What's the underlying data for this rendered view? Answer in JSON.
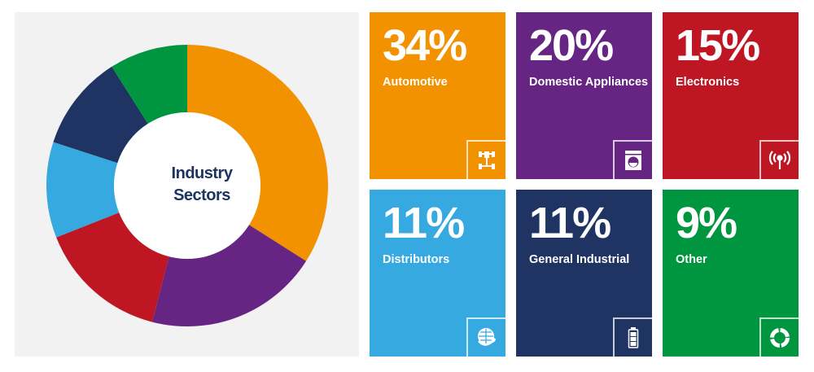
{
  "chart_data": {
    "type": "pie",
    "title": "Industry Sectors",
    "title_lines": [
      "Industry",
      "Sectors"
    ],
    "donut": true,
    "start": "top",
    "direction": "clockwise",
    "categories": [
      "Automotive",
      "Domestic Appliances",
      "Electronics",
      "Distributors",
      "General Industrial",
      "Other"
    ],
    "values": [
      34,
      20,
      15,
      11,
      11,
      9
    ],
    "colors": [
      "#f39200",
      "#662483",
      "#be1622",
      "#36a9e1",
      "#1f3463",
      "#009640"
    ]
  },
  "tiles": [
    {
      "pct": "34%",
      "label": "Automotive",
      "icon": "chassis-icon",
      "color": "#f39200"
    },
    {
      "pct": "20%",
      "label": "Domestic Appliances",
      "icon": "washing-machine-icon",
      "color": "#662483"
    },
    {
      "pct": "15%",
      "label": "Electronics",
      "icon": "antenna-signal-icon",
      "color": "#be1622"
    },
    {
      "pct": "11%",
      "label": "Distributors",
      "icon": "globe-arrow-icon",
      "color": "#36a9e1"
    },
    {
      "pct": "11%",
      "label": "General Industrial",
      "icon": "battery-icon",
      "color": "#1f3463"
    },
    {
      "pct": "9%",
      "label": "Other",
      "icon": "ring-icon",
      "color": "#009640"
    }
  ]
}
